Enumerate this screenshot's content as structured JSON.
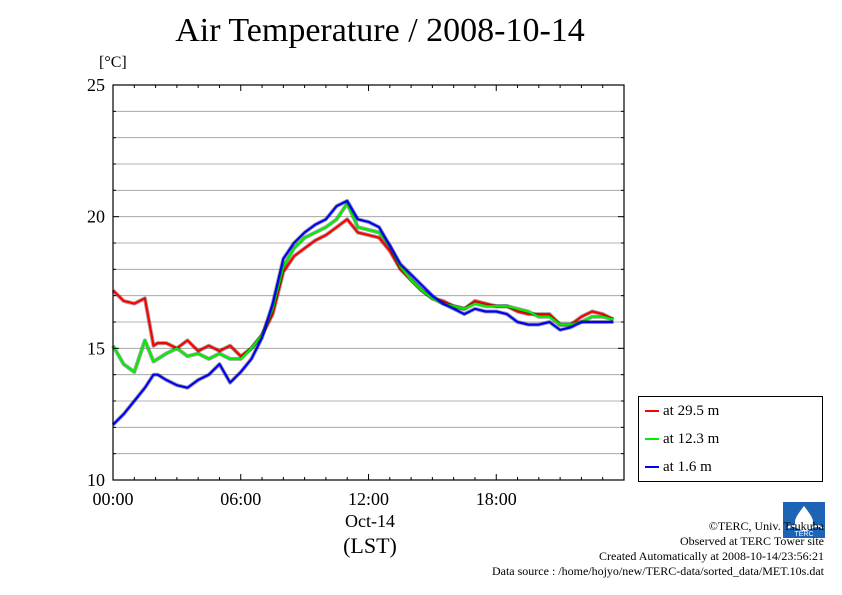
{
  "header": {
    "title": "Air Temperature / 2008-10-14",
    "unit": "[°C]"
  },
  "axes": {
    "x_date": "Oct-14",
    "x_zone": "(LST)"
  },
  "credits": {
    "line1": "©TERC, Univ. Tsukuba",
    "line2": "Observed at TERC Tower site",
    "line3": "Created Automatically at 2008-10-14/23:56:21",
    "line4": "Data source : /home/hojyo/new/TERC-data/sorted_data/MET.10s.dat",
    "logo_text": "TERC"
  },
  "chart_data": {
    "type": "line",
    "title": "Air Temperature / 2008-10-14",
    "ylabel": "[°C]",
    "xlabel": "Oct-14 (LST)",
    "xlim": [
      "00:00",
      "24:00"
    ],
    "ylim": [
      10,
      25
    ],
    "x_ticks": [
      "00:00",
      "06:00",
      "12:00",
      "18:00"
    ],
    "y_ticks": [
      10,
      15,
      20,
      25
    ],
    "grid": true,
    "legend_position": "outside-right-bottom",
    "x": [
      0,
      0.5,
      1,
      1.5,
      1.9,
      2.1,
      2.5,
      3,
      3.5,
      4,
      4.5,
      5,
      5.5,
      6,
      6.5,
      7,
      7.5,
      8,
      8.5,
      9,
      9.5,
      10,
      10.5,
      11,
      11.5,
      12,
      12.5,
      13,
      13.5,
      14,
      14.5,
      15,
      15.5,
      16,
      16.5,
      17,
      17.5,
      18,
      18.5,
      19,
      19.5,
      20,
      20.5,
      21,
      21.5,
      22,
      22.5,
      23,
      23.5
    ],
    "series": [
      {
        "name": "at 29.5 m",
        "color": "#ff0000",
        "values": [
          17.2,
          16.8,
          16.7,
          16.9,
          15.1,
          15.2,
          15.2,
          15.0,
          15.3,
          14.9,
          15.1,
          14.9,
          15.1,
          14.7,
          15.0,
          15.5,
          16.3,
          17.9,
          18.5,
          18.8,
          19.1,
          19.3,
          19.6,
          19.9,
          19.4,
          19.3,
          19.2,
          18.7,
          18.0,
          17.6,
          17.2,
          16.9,
          16.8,
          16.6,
          16.5,
          16.8,
          16.7,
          16.6,
          16.6,
          16.4,
          16.3,
          16.3,
          16.3,
          15.9,
          15.9,
          16.2,
          16.4,
          16.3,
          16.1
        ]
      },
      {
        "name": "at 12.3 m",
        "color": "#00ee00",
        "values": [
          15.1,
          14.4,
          14.1,
          15.3,
          14.5,
          14.6,
          14.8,
          15.0,
          14.7,
          14.8,
          14.6,
          14.8,
          14.6,
          14.6,
          15.0,
          15.5,
          16.5,
          18.1,
          18.8,
          19.2,
          19.4,
          19.6,
          19.9,
          20.5,
          19.6,
          19.5,
          19.4,
          18.9,
          18.1,
          17.6,
          17.2,
          16.9,
          16.7,
          16.6,
          16.5,
          16.7,
          16.6,
          16.6,
          16.6,
          16.5,
          16.4,
          16.2,
          16.2,
          15.9,
          15.9,
          16.0,
          16.2,
          16.2,
          16.1
        ]
      },
      {
        "name": "at 1.6 m",
        "color": "#0000ff",
        "values": [
          12.1,
          12.5,
          13.0,
          13.5,
          14.0,
          14.0,
          13.8,
          13.6,
          13.5,
          13.8,
          14.0,
          14.4,
          13.7,
          14.1,
          14.6,
          15.4,
          16.7,
          18.4,
          19.0,
          19.4,
          19.7,
          19.9,
          20.4,
          20.6,
          19.9,
          19.8,
          19.6,
          18.9,
          18.2,
          17.8,
          17.4,
          17.0,
          16.7,
          16.5,
          16.3,
          16.5,
          16.4,
          16.4,
          16.3,
          16.0,
          15.9,
          15.9,
          16.0,
          15.7,
          15.8,
          16.0,
          16.0,
          16.0,
          16.0
        ]
      }
    ]
  }
}
